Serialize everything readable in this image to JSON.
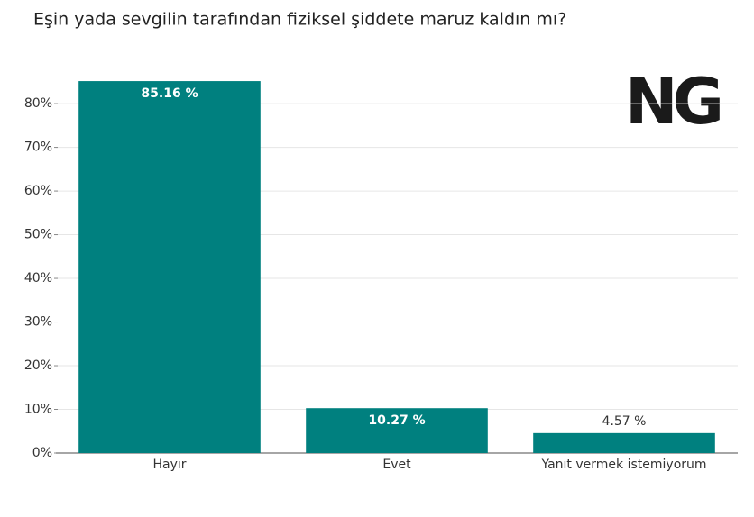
{
  "chart_data": {
    "type": "bar",
    "title": "Eşin yada sevgilin tarafından fiziksel şiddete maruz kaldın mı?",
    "logo": "NG",
    "categories": [
      "Hayır",
      "Evet",
      "Yanıt vermek istemiyorum"
    ],
    "values": [
      85.16,
      10.27,
      4.57
    ],
    "value_labels": [
      "85.16 %",
      "10.27 %",
      "4.57 %"
    ],
    "color": "#00807f",
    "ylim": [
      0,
      86
    ],
    "yticks": [
      {
        "value": 0,
        "label": "0%"
      },
      {
        "value": 10,
        "label": "10%"
      },
      {
        "value": 20,
        "label": "20%"
      },
      {
        "value": 30,
        "label": "30%"
      },
      {
        "value": 40,
        "label": "40%"
      },
      {
        "value": 50,
        "label": "50%"
      },
      {
        "value": 60,
        "label": "60%"
      },
      {
        "value": 70,
        "label": "70%"
      },
      {
        "value": 80,
        "label": "80%"
      }
    ],
    "grid": true
  }
}
